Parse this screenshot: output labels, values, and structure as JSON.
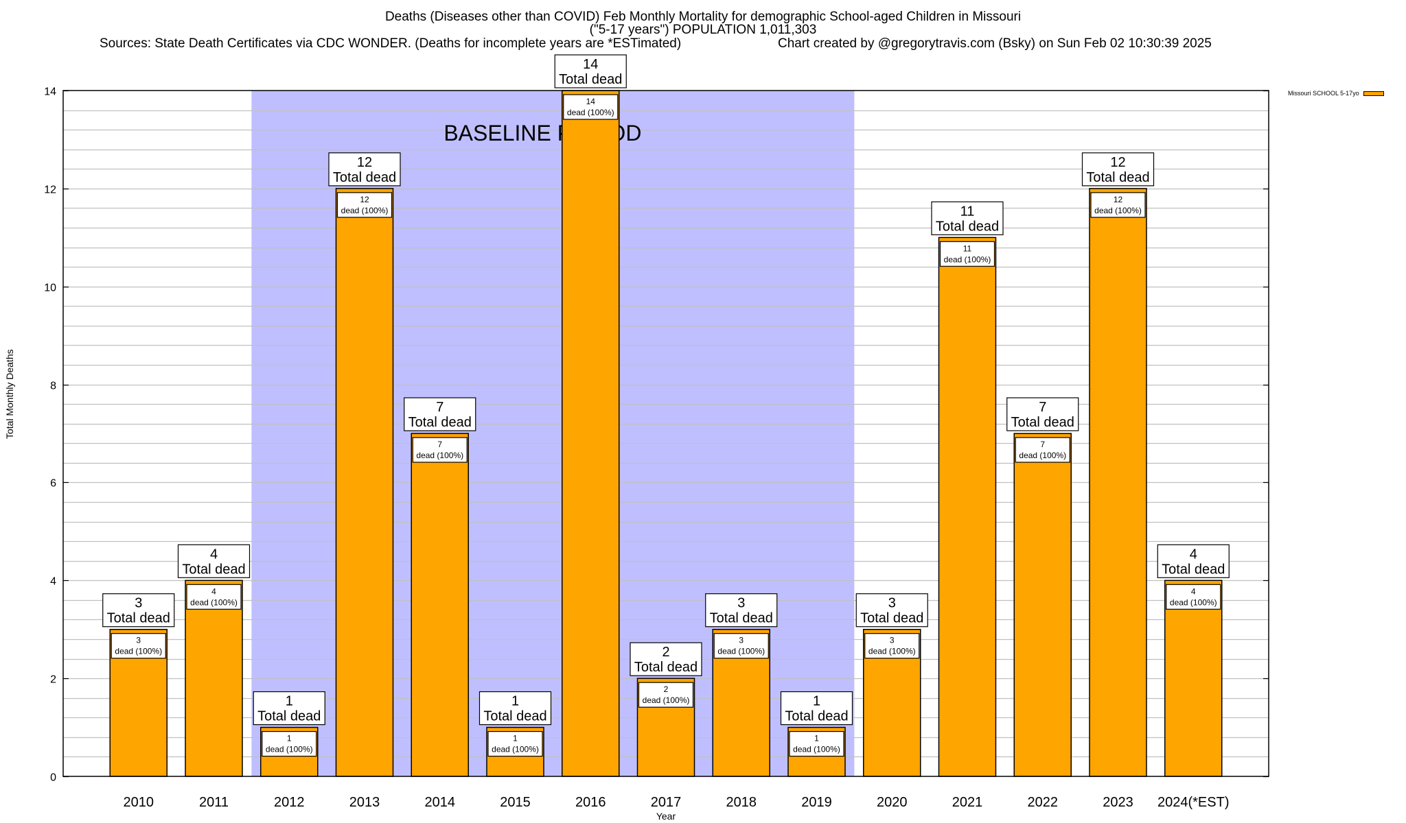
{
  "chart_data": {
    "type": "bar",
    "title": "Deaths (Diseases other than COVID) Feb Monthly Mortality for demographic School-aged Children in Missouri",
    "subtitle": "(\"5-17 years\") POPULATION 1,011,303",
    "source_note": "Sources: State Death Certificates via CDC WONDER. (Deaths for incomplete years are *ESTimated)",
    "credit": "Chart created by @gregorytravis.com (Bsky) on Sun Feb 02 10:30:39 2025",
    "xlabel": "Year",
    "ylabel": "Total Monthly Deaths",
    "ylim": [
      0,
      14
    ],
    "yticks": [
      0,
      2,
      4,
      6,
      8,
      10,
      12,
      14
    ],
    "ytick_labels": [
      "0",
      "2",
      "4",
      "6",
      "8",
      "10",
      "12",
      "14"
    ],
    "minor_grid_step": 0.4,
    "grid": true,
    "legend_position": "top-right outside",
    "categories": [
      "2010",
      "2011",
      "2012",
      "2013",
      "2014",
      "2015",
      "2016",
      "2017",
      "2018",
      "2019",
      "2020",
      "2021",
      "2022",
      "2023",
      "2024(*EST)"
    ],
    "series": [
      {
        "name": "Missouri SCHOOL 5-17yo",
        "color": "#ffa500",
        "values": [
          3,
          4,
          1,
          12,
          7,
          1,
          14,
          2,
          3,
          1,
          3,
          11,
          7,
          12,
          4
        ]
      }
    ],
    "total_label_suffix": "Total dead",
    "inner_label_suffix": "dead (100%)",
    "annotation": {
      "text": "BASELINE PERIOD",
      "start_category": "2012",
      "end_category": "2019",
      "color": "#bfbfff"
    },
    "colors": {
      "bar": "#ffa500",
      "baseline_shade": "#bfbfff",
      "grid": "#c0c0c0"
    }
  }
}
